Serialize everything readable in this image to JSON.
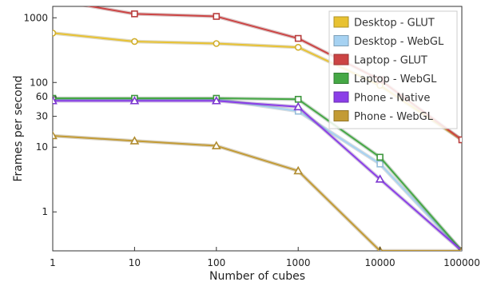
{
  "chart_data": {
    "type": "line",
    "xlabel": "Number of cubes",
    "ylabel": "Frames per second",
    "x_scale": "log",
    "y_scale": "log",
    "xlim": [
      1,
      100000
    ],
    "ylim": [
      0.25,
      1500
    ],
    "x_ticks": [
      1,
      10,
      100,
      1000,
      10000,
      100000
    ],
    "x_tick_labels": [
      "1",
      "10",
      "100",
      "1000",
      "10000",
      "100000"
    ],
    "y_ticks": [
      1,
      10,
      30,
      60,
      100,
      1000
    ],
    "y_tick_labels": [
      "1",
      "10",
      "30",
      "60",
      "100",
      "1000"
    ],
    "grid": false,
    "legend_position": "top-right",
    "x": [
      1,
      10,
      100,
      1000,
      10000,
      100000
    ],
    "series": [
      {
        "name": "Desktop - GLUT",
        "values": [
          580,
          430,
          400,
          350,
          90,
          13
        ],
        "color": "#e8c232",
        "marker": "circle"
      },
      {
        "name": "Desktop - WebGL",
        "values": [
          55,
          55,
          55,
          36,
          5.5,
          0.25
        ],
        "color": "#a6d2f2",
        "marker": "square"
      },
      {
        "name": "Laptop - GLUT",
        "values": [
          1900,
          1150,
          1050,
          480,
          110,
          13
        ],
        "color": "#cc4444",
        "marker": "square"
      },
      {
        "name": "Laptop - WebGL",
        "values": [
          57,
          57,
          57,
          55,
          7,
          0.25
        ],
        "color": "#45a845",
        "marker": "square"
      },
      {
        "name": "Phone - Native",
        "values": [
          52,
          52,
          52,
          42,
          3.2,
          0.25
        ],
        "color": "#8b3ee8",
        "marker": "triangle"
      },
      {
        "name": "Phone - WebGL",
        "values": [
          15,
          12.5,
          10.5,
          4.3,
          0.25,
          0.25
        ],
        "color": "#c39b35",
        "marker": "triangle"
      }
    ]
  }
}
